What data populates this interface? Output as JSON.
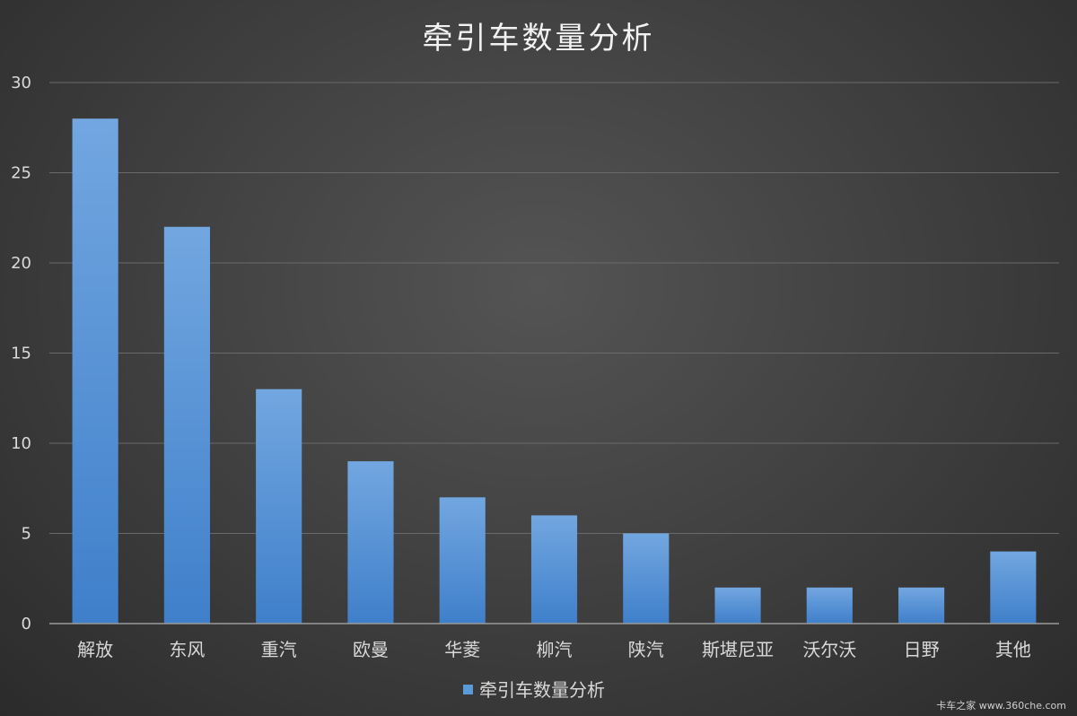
{
  "chart_data": {
    "type": "bar",
    "title": "牵引车数量分析",
    "categories": [
      "解放",
      "东风",
      "重汽",
      "欧曼",
      "华菱",
      "柳汽",
      "陕汽",
      "斯堪尼亚",
      "沃尔沃",
      "日野",
      "其他"
    ],
    "series": [
      {
        "name": "牵引车数量分析",
        "values": [
          28,
          22,
          13,
          9,
          7,
          6,
          5,
          2,
          2,
          2,
          4
        ]
      }
    ],
    "yticks": [
      "0",
      "5",
      "10",
      "15",
      "20",
      "25",
      "30"
    ],
    "ylim": [
      0,
      30
    ],
    "xlabel": "",
    "ylabel": "",
    "grid": true,
    "legend_position": "bottom",
    "colors": {
      "bar_top": "#72a7e0",
      "bar_bottom": "#3f7fca",
      "legend_swatch": "#5b9bd5"
    }
  },
  "watermark": "卡车之家 www.360che.com"
}
